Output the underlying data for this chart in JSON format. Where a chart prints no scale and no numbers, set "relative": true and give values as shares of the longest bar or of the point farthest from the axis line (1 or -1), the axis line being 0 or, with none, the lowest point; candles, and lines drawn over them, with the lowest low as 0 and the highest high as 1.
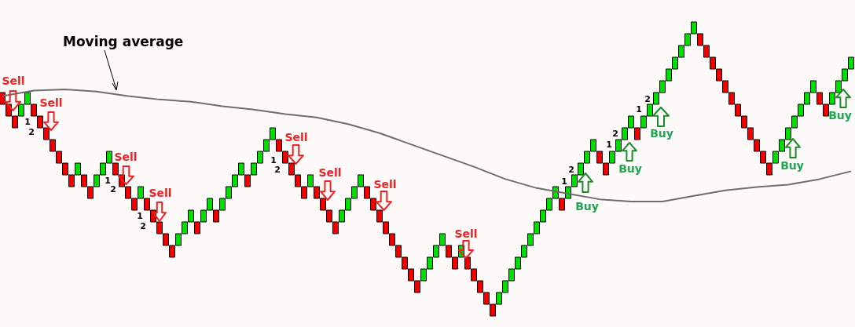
{
  "chart_data": [
    {
      "type": "candlestick",
      "relative": true,
      "categories": [
        null,
        null,
        null,
        null,
        null,
        null,
        null,
        null,
        null,
        null,
        null,
        null,
        null,
        null,
        null,
        null,
        null,
        null,
        null,
        null,
        null,
        null,
        null,
        null,
        null,
        null,
        null,
        null,
        null,
        null,
        null,
        null,
        null,
        null,
        null,
        null,
        null,
        null,
        null,
        null,
        null,
        null,
        null,
        null,
        null,
        null,
        null,
        null,
        null,
        null,
        null,
        null,
        null,
        null,
        null,
        null,
        null,
        null,
        null,
        null,
        null,
        null,
        null,
        null,
        null,
        null,
        null,
        null,
        null,
        null,
        null,
        null,
        null,
        null,
        null,
        null,
        null,
        null,
        null,
        null,
        null,
        null,
        null,
        null,
        null,
        null,
        null,
        null,
        null,
        null,
        null,
        null,
        null,
        null,
        null,
        null,
        null,
        null,
        null,
        null,
        null,
        null,
        null,
        null,
        null,
        null,
        null,
        null,
        null,
        null,
        null,
        null,
        null,
        null,
        null,
        null,
        null,
        null,
        null,
        null,
        null,
        null,
        null,
        null,
        null,
        null,
        null,
        null,
        null,
        null,
        null,
        null,
        null,
        null,
        null,
        null
      ],
      "series": [
        {
          "ohlc": [
            [
              0.76,
              0.76,
              0.72,
              0.72
            ],
            [
              0.72,
              0.72,
              0.68,
              0.68
            ],
            [
              0.68,
              0.68,
              0.64,
              0.64
            ],
            [
              0.68,
              0.72,
              0.68,
              0.72
            ],
            [
              0.72,
              0.76,
              0.72,
              0.76
            ],
            [
              0.72,
              0.72,
              0.68,
              0.68
            ],
            [
              0.68,
              0.68,
              0.64,
              0.64
            ],
            [
              0.64,
              0.64,
              0.6,
              0.6
            ],
            [
              0.6,
              0.6,
              0.56,
              0.56
            ],
            [
              0.56,
              0.56,
              0.52,
              0.52
            ],
            [
              0.52,
              0.52,
              0.48,
              0.48
            ],
            [
              0.48,
              0.48,
              0.44,
              0.44
            ],
            [
              0.48,
              0.52,
              0.48,
              0.52
            ],
            [
              0.48,
              0.48,
              0.44,
              0.44
            ],
            [
              0.44,
              0.44,
              0.4,
              0.4
            ],
            [
              0.44,
              0.48,
              0.44,
              0.48
            ],
            [
              0.48,
              0.52,
              0.48,
              0.52
            ],
            [
              0.52,
              0.56,
              0.52,
              0.56
            ],
            [
              0.52,
              0.52,
              0.48,
              0.48
            ],
            [
              0.48,
              0.48,
              0.44,
              0.44
            ],
            [
              0.44,
              0.44,
              0.4,
              0.4
            ],
            [
              0.4,
              0.4,
              0.36,
              0.36
            ],
            [
              0.4,
              0.44,
              0.4,
              0.44
            ],
            [
              0.4,
              0.4,
              0.36,
              0.36
            ],
            [
              0.36,
              0.36,
              0.32,
              0.32
            ],
            [
              0.32,
              0.32,
              0.28,
              0.28
            ],
            [
              0.28,
              0.28,
              0.24,
              0.24
            ],
            [
              0.24,
              0.24,
              0.2,
              0.2
            ],
            [
              0.24,
              0.28,
              0.24,
              0.28
            ],
            [
              0.28,
              0.32,
              0.28,
              0.32
            ],
            [
              0.32,
              0.36,
              0.32,
              0.36
            ],
            [
              0.32,
              0.32,
              0.28,
              0.28
            ],
            [
              0.32,
              0.36,
              0.32,
              0.36
            ],
            [
              0.36,
              0.4,
              0.36,
              0.4
            ],
            [
              0.36,
              0.36,
              0.32,
              0.32
            ],
            [
              0.36,
              0.4,
              0.36,
              0.4
            ],
            [
              0.4,
              0.44,
              0.4,
              0.44
            ],
            [
              0.44,
              0.48,
              0.44,
              0.48
            ],
            [
              0.48,
              0.52,
              0.48,
              0.52
            ],
            [
              0.48,
              0.48,
              0.44,
              0.44
            ],
            [
              0.48,
              0.52,
              0.48,
              0.52
            ],
            [
              0.52,
              0.56,
              0.52,
              0.56
            ],
            [
              0.56,
              0.6,
              0.56,
              0.6
            ],
            [
              0.6,
              0.64,
              0.6,
              0.64
            ],
            [
              0.6,
              0.6,
              0.56,
              0.56
            ],
            [
              0.56,
              0.56,
              0.52,
              0.52
            ],
            [
              0.52,
              0.52,
              0.48,
              0.48
            ],
            [
              0.48,
              0.48,
              0.44,
              0.44
            ],
            [
              0.44,
              0.44,
              0.4,
              0.4
            ],
            [
              0.44,
              0.48,
              0.44,
              0.48
            ],
            [
              0.44,
              0.44,
              0.4,
              0.4
            ],
            [
              0.4,
              0.4,
              0.36,
              0.36
            ],
            [
              0.36,
              0.36,
              0.32,
              0.32
            ],
            [
              0.32,
              0.32,
              0.28,
              0.28
            ],
            [
              0.32,
              0.36,
              0.32,
              0.36
            ],
            [
              0.36,
              0.4,
              0.36,
              0.4
            ],
            [
              0.4,
              0.44,
              0.4,
              0.44
            ],
            [
              0.44,
              0.48,
              0.44,
              0.48
            ],
            [
              0.44,
              0.44,
              0.4,
              0.4
            ],
            [
              0.4,
              0.4,
              0.36,
              0.36
            ],
            [
              0.36,
              0.36,
              0.32,
              0.32
            ],
            [
              0.32,
              0.32,
              0.28,
              0.28
            ],
            [
              0.28,
              0.28,
              0.24,
              0.24
            ],
            [
              0.24,
              0.24,
              0.2,
              0.2
            ],
            [
              0.2,
              0.2,
              0.16,
              0.16
            ],
            [
              0.16,
              0.16,
              0.12,
              0.12
            ],
            [
              0.12,
              0.12,
              0.08,
              0.08
            ],
            [
              0.12,
              0.16,
              0.12,
              0.16
            ],
            [
              0.16,
              0.2,
              0.16,
              0.2
            ],
            [
              0.2,
              0.24,
              0.2,
              0.24
            ],
            [
              0.24,
              0.28,
              0.24,
              0.28
            ],
            [
              0.24,
              0.24,
              0.2,
              0.2
            ],
            [
              0.2,
              0.2,
              0.16,
              0.16
            ],
            [
              0.2,
              0.24,
              0.2,
              0.24
            ],
            [
              0.2,
              0.2,
              0.16,
              0.16
            ],
            [
              0.16,
              0.16,
              0.12,
              0.12
            ],
            [
              0.12,
              0.12,
              0.08,
              0.08
            ],
            [
              0.08,
              0.08,
              0.04,
              0.04
            ],
            [
              0.04,
              0.04,
              0,
              0
            ],
            [
              0.04,
              0.08,
              0.04,
              0.08
            ],
            [
              0.08,
              0.12,
              0.08,
              0.12
            ],
            [
              0.12,
              0.16,
              0.12,
              0.16
            ],
            [
              0.16,
              0.2,
              0.16,
              0.2
            ],
            [
              0.2,
              0.24,
              0.2,
              0.24
            ],
            [
              0.24,
              0.28,
              0.24,
              0.28
            ],
            [
              0.28,
              0.32,
              0.28,
              0.32
            ],
            [
              0.32,
              0.36,
              0.32,
              0.36
            ],
            [
              0.36,
              0.4,
              0.36,
              0.4
            ],
            [
              0.4,
              0.44,
              0.4,
              0.44
            ],
            [
              0.4,
              0.4,
              0.36,
              0.36
            ],
            [
              0.4,
              0.44,
              0.4,
              0.44
            ],
            [
              0.44,
              0.48,
              0.44,
              0.48
            ],
            [
              0.48,
              0.52,
              0.48,
              0.52
            ],
            [
              0.52,
              0.56,
              0.52,
              0.56
            ],
            [
              0.56,
              0.6,
              0.56,
              0.6
            ],
            [
              0.56,
              0.56,
              0.52,
              0.52
            ],
            [
              0.52,
              0.52,
              0.48,
              0.48
            ],
            [
              0.52,
              0.56,
              0.52,
              0.56
            ],
            [
              0.56,
              0.6,
              0.56,
              0.6
            ],
            [
              0.6,
              0.64,
              0.6,
              0.64
            ],
            [
              0.64,
              0.68,
              0.64,
              0.68
            ],
            [
              0.64,
              0.64,
              0.6,
              0.6
            ],
            [
              0.64,
              0.68,
              0.64,
              0.68
            ],
            [
              0.68,
              0.72,
              0.68,
              0.72
            ],
            [
              0.72,
              0.76,
              0.72,
              0.76
            ],
            [
              0.76,
              0.8,
              0.76,
              0.8
            ],
            [
              0.8,
              0.84,
              0.8,
              0.84
            ],
            [
              0.84,
              0.88,
              0.84,
              0.88
            ],
            [
              0.88,
              0.92,
              0.88,
              0.92
            ],
            [
              0.92,
              0.96,
              0.92,
              0.96
            ],
            [
              0.96,
              1,
              0.96,
              1
            ],
            [
              0.96,
              0.96,
              0.92,
              0.92
            ],
            [
              0.92,
              0.92,
              0.88,
              0.88
            ],
            [
              0.88,
              0.88,
              0.84,
              0.84
            ],
            [
              0.84,
              0.84,
              0.8,
              0.8
            ],
            [
              0.8,
              0.8,
              0.76,
              0.76
            ],
            [
              0.76,
              0.76,
              0.72,
              0.72
            ],
            [
              0.72,
              0.72,
              0.68,
              0.68
            ],
            [
              0.68,
              0.68,
              0.64,
              0.64
            ],
            [
              0.64,
              0.64,
              0.6,
              0.6
            ],
            [
              0.6,
              0.6,
              0.56,
              0.56
            ],
            [
              0.56,
              0.56,
              0.52,
              0.52
            ],
            [
              0.52,
              0.52,
              0.48,
              0.48
            ],
            [
              0.52,
              0.56,
              0.52,
              0.56
            ],
            [
              0.56,
              0.6,
              0.56,
              0.6
            ],
            [
              0.6,
              0.64,
              0.6,
              0.64
            ],
            [
              0.64,
              0.68,
              0.64,
              0.68
            ],
            [
              0.68,
              0.72,
              0.68,
              0.72
            ],
            [
              0.72,
              0.76,
              0.72,
              0.76
            ],
            [
              0.76,
              0.8,
              0.76,
              0.8
            ],
            [
              0.76,
              0.76,
              0.72,
              0.72
            ],
            [
              0.72,
              0.72,
              0.68,
              0.68
            ],
            [
              0.72,
              0.76,
              0.72,
              0.76
            ],
            [
              0.76,
              0.8,
              0.76,
              0.8
            ],
            [
              0.8,
              0.84,
              0.8,
              0.84
            ],
            [
              0.84,
              0.88,
              0.84,
              0.88
            ]
          ],
          "colors": [
            "#ee0000",
            "#ee0000",
            "#ee0000",
            "#00dd00",
            "#00dd00",
            "#ee0000",
            "#ee0000",
            "#ee0000",
            "#ee0000",
            "#ee0000",
            "#ee0000",
            "#ee0000",
            "#00dd00",
            "#ee0000",
            "#ee0000",
            "#00dd00",
            "#00dd00",
            "#00dd00",
            "#ee0000",
            "#ee0000",
            "#ee0000",
            "#ee0000",
            "#00dd00",
            "#ee0000",
            "#ee0000",
            "#ee0000",
            "#ee0000",
            "#ee0000",
            "#00dd00",
            "#00dd00",
            "#00dd00",
            "#ee0000",
            "#00dd00",
            "#00dd00",
            "#ee0000",
            "#00dd00",
            "#00dd00",
            "#00dd00",
            "#00dd00",
            "#ee0000",
            "#00dd00",
            "#00dd00",
            "#00dd00",
            "#00dd00",
            "#ee0000",
            "#ee0000",
            "#ee0000",
            "#ee0000",
            "#ee0000",
            "#00dd00",
            "#ee0000",
            "#ee0000",
            "#ee0000",
            "#ee0000",
            "#00dd00",
            "#00dd00",
            "#00dd00",
            "#00dd00",
            "#ee0000",
            "#ee0000",
            "#ee0000",
            "#ee0000",
            "#ee0000",
            "#ee0000",
            "#ee0000",
            "#ee0000",
            "#ee0000",
            "#00dd00",
            "#00dd00",
            "#00dd00",
            "#00dd00",
            "#ee0000",
            "#ee0000",
            "#00dd00",
            "#ee0000",
            "#ee0000",
            "#ee0000",
            "#ee0000",
            "#ee0000",
            "#00dd00",
            "#00dd00",
            "#00dd00",
            "#00dd00",
            "#00dd00",
            "#00dd00",
            "#00dd00",
            "#00dd00",
            "#00dd00",
            "#00dd00",
            "#ee0000",
            "#00dd00",
            "#00dd00",
            "#00dd00",
            "#00dd00",
            "#00dd00",
            "#ee0000",
            "#ee0000",
            "#00dd00",
            "#00dd00",
            "#00dd00",
            "#00dd00",
            "#ee0000",
            "#00dd00",
            "#00dd00",
            "#00dd00",
            "#00dd00",
            "#00dd00",
            "#00dd00",
            "#00dd00",
            "#00dd00",
            "#00dd00",
            "#ee0000",
            "#ee0000",
            "#ee0000",
            "#ee0000",
            "#ee0000",
            "#ee0000",
            "#ee0000",
            "#ee0000",
            "#ee0000",
            "#ee0000",
            "#ee0000",
            "#ee0000",
            "#00dd00",
            "#00dd00",
            "#00dd00",
            "#00dd00",
            "#00dd00",
            "#00dd00",
            "#00dd00",
            "#ee0000",
            "#ee0000",
            "#00dd00",
            "#00dd00",
            "#00dd00",
            "#00dd00"
          ]
        }
      ],
      "annotations": [
        "Moving average",
        "Sell",
        "Sell",
        "Sell",
        "Sell",
        "Sell",
        "Sell",
        "Sell",
        "Sell",
        "Buy",
        "Buy",
        "Buy",
        "Buy",
        "Buy",
        "1",
        "2",
        "1",
        "2",
        "1",
        "2",
        "1",
        "2",
        "1",
        "2",
        "1",
        "2",
        "1",
        "2"
      ]
    },
    {
      "type": "line",
      "relative": true,
      "marker": "none",
      "line_style": "solid",
      "categories": [
        null,
        null,
        null,
        null,
        null,
        null,
        null,
        null,
        null,
        null,
        null,
        null,
        null,
        null,
        null,
        null,
        null,
        null,
        null,
        null,
        null,
        null,
        null,
        null,
        null,
        null,
        null,
        null
      ],
      "series": [
        {
          "color": "#6e6e6e",
          "values": [
            0.94,
            0.99,
            1,
            0.98,
            0.94,
            0.91,
            0.89,
            0.85,
            0.82,
            0.78,
            0.75,
            0.69,
            0.61,
            0.51,
            0.41,
            0.31,
            0.2,
            0.12,
            0.07,
            0.02,
            0,
            0,
            0.05,
            0.1,
            0.13,
            0.15,
            0.2,
            0.27
          ]
        }
      ]
    }
  ]
}
